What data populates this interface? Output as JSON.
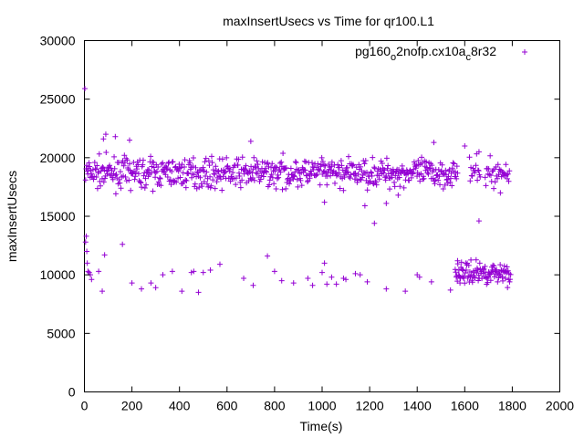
{
  "chart_data": {
    "type": "scatter",
    "title": "maxInsertUsecs vs Time for qr100.L1",
    "xlabel": "Time(s)",
    "ylabel": "maxInsertUsecs",
    "xlim": [
      0,
      2000
    ],
    "ylim": [
      0,
      30000
    ],
    "x_ticks": [
      0,
      200,
      400,
      600,
      800,
      1000,
      1200,
      1400,
      1600,
      1800,
      2000
    ],
    "y_ticks": [
      0,
      5000,
      10000,
      15000,
      20000,
      25000,
      30000
    ],
    "grid": false,
    "legend_position": "top-right",
    "marker": "plus",
    "series": [
      {
        "name_parts": [
          "pg160",
          "o",
          "2nofp.cx10a",
          "c",
          "8r32"
        ],
        "color": "#9400d3",
        "points_note": "dense band approx 17000-21000 from 0-1570s and 1620-1790s; sparse lower band ~8500-12500",
        "points": [
          [
            2,
            25900
          ],
          [
            5,
            12800
          ],
          [
            8,
            13300
          ],
          [
            10,
            12000
          ],
          [
            12,
            11000
          ],
          [
            15,
            10300
          ],
          [
            20,
            10200
          ],
          [
            25,
            10000
          ],
          [
            30,
            9600
          ],
          [
            60,
            10300
          ],
          [
            75,
            8600
          ],
          [
            85,
            11700
          ],
          [
            160,
            12600
          ],
          [
            200,
            9300
          ],
          [
            240,
            8800
          ],
          [
            280,
            9300
          ],
          [
            300,
            8900
          ],
          [
            330,
            10000
          ],
          [
            370,
            10300
          ],
          [
            410,
            8600
          ],
          [
            450,
            10200
          ],
          [
            460,
            10300
          ],
          [
            480,
            8500
          ],
          [
            500,
            10200
          ],
          [
            530,
            10400
          ],
          [
            570,
            10900
          ],
          [
            670,
            9700
          ],
          [
            710,
            9100
          ],
          [
            770,
            11600
          ],
          [
            800,
            10300
          ],
          [
            830,
            9500
          ],
          [
            880,
            9300
          ],
          [
            940,
            9700
          ],
          [
            960,
            9100
          ],
          [
            1000,
            10200
          ],
          [
            1010,
            11000
          ],
          [
            1020,
            9200
          ],
          [
            1040,
            9800
          ],
          [
            1060,
            9200
          ],
          [
            1090,
            9700
          ],
          [
            1100,
            9600
          ],
          [
            1140,
            10100
          ],
          [
            1160,
            10000
          ],
          [
            1190,
            9400
          ],
          [
            1270,
            8800
          ],
          [
            1350,
            8600
          ],
          [
            1400,
            10000
          ],
          [
            1410,
            9800
          ],
          [
            1460,
            9400
          ],
          [
            1540,
            8700
          ],
          [
            1570,
            11200
          ],
          [
            1580,
            9300
          ],
          [
            1220,
            14400
          ],
          [
            1660,
            14600
          ],
          [
            1750,
            17000
          ],
          [
            1270,
            16100
          ],
          [
            1010,
            16200
          ],
          [
            1320,
            16800
          ],
          [
            1180,
            15900
          ],
          [
            80,
            21600
          ],
          [
            90,
            22000
          ],
          [
            130,
            21800
          ],
          [
            190,
            21500
          ],
          [
            700,
            21400
          ],
          [
            1470,
            21300
          ],
          [
            1600,
            21000
          ],
          [
            1660,
            20500
          ]
        ]
      }
    ]
  }
}
